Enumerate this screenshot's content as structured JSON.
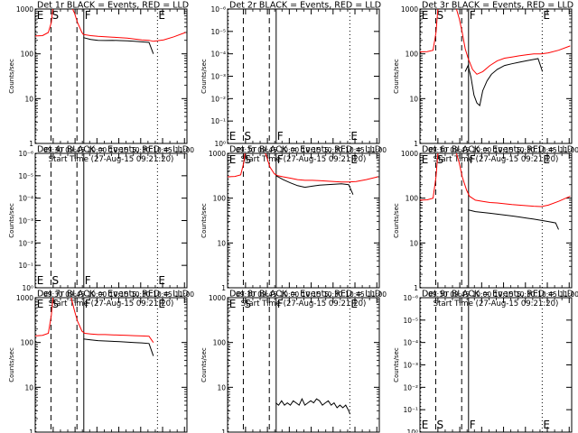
{
  "figure": {
    "xtick_labels": [
      "09:30",
      "09:45",
      "10:00",
      "10:15",
      "10:30",
      "10:45",
      "11:00"
    ],
    "xtick_minutes": [
      569.3,
      584.3,
      599.3,
      614.3,
      629.3,
      644.3,
      659.3
    ],
    "x_range_minutes": [
      557,
      661
    ],
    "y_range": [
      1,
      1000
    ],
    "y_scale": "log",
    "y_ticks": [
      1,
      10,
      100,
      1000
    ],
    "ylabel": "Counts/sec",
    "xlabel": "Start Time (27-Aug-15 09:21:20)",
    "colors": {
      "events": "#000000",
      "lld": "#ff0000"
    },
    "markers": [
      {
        "label": "E",
        "minute": 557.5,
        "style": "dotted",
        "label_pos": "top"
      },
      {
        "label": "S",
        "minute": 567.8,
        "style": "dashed",
        "label_pos": "top"
      },
      {
        "label": "",
        "minute": 585.6,
        "style": "dashed",
        "label_pos": "top"
      },
      {
        "label": "F",
        "minute": 590.3,
        "style": "solid",
        "label_pos": "top"
      },
      {
        "label": "E",
        "minute": 640.8,
        "style": "dotted",
        "label_pos": "top"
      }
    ],
    "marker_line_styles": {
      "solid": "",
      "dashed": "6,4",
      "dotted": "1,3"
    }
  },
  "chart_data": [
    {
      "type": "line",
      "title": "Det 1r  BLACK = Events, RED = LLD",
      "ytick_labels": [
        "1",
        "10",
        "100",
        "1000"
      ],
      "marker_label_pos": "top",
      "series": [
        {
          "name": "Events",
          "color": "#000000",
          "x": [
            590,
            595,
            600,
            605,
            610,
            615,
            620,
            625,
            630,
            635,
            638
          ],
          "y": [
            230,
            210,
            200,
            198,
            200,
            197,
            195,
            190,
            185,
            180,
            100
          ]
        },
        {
          "name": "LLD",
          "color": "#ff0000",
          "x": [
            557,
            562,
            566,
            568,
            570,
            573,
            577,
            580,
            582,
            584,
            586,
            589,
            590,
            595,
            600,
            605,
            610,
            615,
            620,
            625,
            630,
            635,
            638,
            645,
            652,
            660
          ],
          "y": [
            250,
            255,
            300,
            500,
            2000,
            2000,
            2000,
            2000,
            1100,
            800,
            500,
            300,
            270,
            255,
            245,
            240,
            235,
            230,
            225,
            215,
            205,
            200,
            190,
            205,
            240,
            300
          ]
        }
      ]
    },
    {
      "type": "line",
      "title": "Det 2r  BLACK = Events, RED = LLD",
      "ytick_labels": [
        "10⁰",
        "10⁻¹",
        "10⁻²",
        "10⁻³",
        "10⁻⁴",
        "10⁻⁵",
        "10⁻⁶"
      ],
      "marker_label_pos": "bottom",
      "series": []
    },
    {
      "type": "line",
      "title": "Det 3r  BLACK = Events, RED = LLD",
      "ytick_labels": [
        "1",
        "10",
        "100",
        "1000"
      ],
      "marker_label_pos": "top",
      "series": [
        {
          "name": "Events",
          "color": "#000000",
          "x": [
            588,
            590,
            592,
            594,
            596,
            598,
            600,
            603,
            606,
            610,
            615,
            620,
            625,
            630,
            635,
            638,
            641
          ],
          "y": [
            40,
            55,
            30,
            12,
            8,
            7,
            15,
            25,
            35,
            45,
            55,
            60,
            65,
            70,
            75,
            78,
            40
          ]
        },
        {
          "name": "LLD",
          "color": "#ff0000",
          "x": [
            557,
            562,
            566,
            568,
            570,
            573,
            577,
            580,
            582,
            584,
            586,
            588,
            590,
            593,
            596,
            600,
            605,
            610,
            615,
            620,
            625,
            630,
            635,
            640,
            645,
            652,
            660
          ],
          "y": [
            110,
            112,
            120,
            300,
            2000,
            2000,
            2000,
            2000,
            1000,
            600,
            300,
            130,
            80,
            45,
            35,
            40,
            55,
            70,
            80,
            85,
            90,
            95,
            100,
            100,
            105,
            120,
            150
          ]
        }
      ]
    },
    {
      "type": "line",
      "title": "Det 4r  BLACK = Events, RED = LLD",
      "ytick_labels": [
        "10⁰",
        "10⁻¹",
        "10⁻²",
        "10⁻³",
        "10⁻⁴",
        "10⁻⁵",
        "10⁻⁶"
      ],
      "marker_label_pos": "bottom",
      "series": []
    },
    {
      "type": "line",
      "title": "Det 5r  BLACK = Events, RED = LLD",
      "ytick_labels": [
        "1",
        "10",
        "100",
        "1000"
      ],
      "marker_label_pos": "top",
      "series": [
        {
          "name": "Events",
          "color": "#000000",
          "x": [
            590,
            595,
            600,
            605,
            610,
            615,
            620,
            625,
            630,
            635,
            640,
            643
          ],
          "y": [
            320,
            260,
            220,
            190,
            175,
            185,
            195,
            200,
            205,
            210,
            200,
            120
          ]
        },
        {
          "name": "LLD",
          "color": "#ff0000",
          "x": [
            557,
            562,
            566,
            568,
            570,
            573,
            577,
            580,
            582,
            584,
            586,
            589,
            591,
            595,
            600,
            605,
            610,
            615,
            620,
            625,
            630,
            635,
            640,
            645,
            652,
            660
          ],
          "y": [
            300,
            305,
            330,
            600,
            2000,
            2000,
            2000,
            2000,
            1200,
            800,
            500,
            350,
            320,
            300,
            280,
            260,
            250,
            250,
            245,
            240,
            235,
            230,
            230,
            235,
            260,
            300
          ]
        }
      ]
    },
    {
      "type": "line",
      "title": "Det 6r  BLACK = Events, RED = LLD",
      "ytick_labels": [
        "1",
        "10",
        "100",
        "1000"
      ],
      "marker_label_pos": "top",
      "series": [
        {
          "name": "Events",
          "color": "#000000",
          "x": [
            590,
            595,
            600,
            605,
            610,
            615,
            620,
            625,
            630,
            635,
            640,
            645,
            650,
            652
          ],
          "y": [
            55,
            50,
            48,
            46,
            44,
            42,
            40,
            38,
            36,
            34,
            32,
            30,
            28,
            20
          ]
        },
        {
          "name": "LLD",
          "color": "#ff0000",
          "x": [
            557,
            562,
            566,
            568,
            570,
            573,
            577,
            580,
            582,
            584,
            586,
            589,
            591,
            595,
            600,
            605,
            610,
            615,
            620,
            625,
            630,
            635,
            640,
            645,
            652,
            660
          ],
          "y": [
            90,
            92,
            100,
            300,
            2000,
            2000,
            2000,
            2000,
            1000,
            600,
            300,
            150,
            110,
            90,
            85,
            80,
            78,
            75,
            72,
            70,
            68,
            66,
            65,
            70,
            85,
            110
          ]
        }
      ]
    },
    {
      "type": "line",
      "title": "Det 7r  BLACK = Events, RED = LLD",
      "ytick_labels": [
        "1",
        "10",
        "100",
        "1000"
      ],
      "marker_label_pos": "top",
      "series": [
        {
          "name": "Events",
          "color": "#000000",
          "x": [
            590,
            595,
            600,
            605,
            610,
            615,
            620,
            625,
            630,
            635,
            638
          ],
          "y": [
            120,
            115,
            110,
            108,
            106,
            104,
            102,
            100,
            98,
            95,
            50
          ]
        },
        {
          "name": "LLD",
          "color": "#ff0000",
          "x": [
            557,
            562,
            566,
            568,
            570,
            573,
            577,
            580,
            582,
            584,
            586,
            589,
            591,
            595,
            600,
            605,
            610,
            615,
            620,
            625,
            630,
            635,
            638
          ],
          "y": [
            140,
            145,
            160,
            400,
            2000,
            2000,
            2000,
            2000,
            900,
            500,
            300,
            180,
            160,
            155,
            150,
            150,
            148,
            146,
            145,
            142,
            140,
            138,
            100
          ]
        }
      ]
    },
    {
      "type": "line",
      "title": "Det 8r  BLACK = Events, RED = LLD",
      "ytick_labels": [
        "1",
        "10",
        "100",
        "1000"
      ],
      "marker_label_pos": "top",
      "series": [
        {
          "name": "Events",
          "color": "#000000",
          "x": [
            590,
            592,
            594,
            596,
            598,
            600,
            602,
            604,
            606,
            608,
            610,
            612,
            614,
            616,
            618,
            620,
            622,
            624,
            626,
            628,
            630,
            632,
            634,
            636,
            638,
            640,
            641
          ],
          "y": [
            4.5,
            4,
            5,
            4,
            4.5,
            4,
            5,
            4.5,
            4,
            5.5,
            4,
            4.5,
            5,
            4.5,
            5.5,
            5,
            4,
            4.5,
            5,
            4,
            4.5,
            3.5,
            4,
            3.5,
            4,
            3,
            2.5
          ]
        }
      ]
    },
    {
      "type": "line",
      "title": "Det 9r  BLACK = Events, RED = LLD",
      "ytick_labels": [
        "10⁰",
        "10⁻¹",
        "10⁻²",
        "10⁻³",
        "10⁻⁴",
        "10⁻⁵",
        "10⁻⁶"
      ],
      "marker_label_pos": "bottom",
      "series": []
    }
  ]
}
